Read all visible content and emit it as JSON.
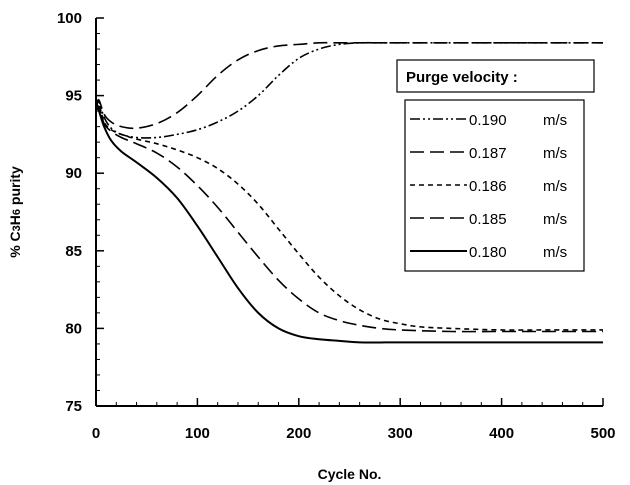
{
  "chart_data": {
    "type": "line",
    "title": "",
    "xlabel": "Cycle No.",
    "ylabel_prefix": "% C",
    "ylabel_sub1": "3",
    "ylabel_mid": "H",
    "ylabel_sub2": "6",
    "ylabel_suffix": " purity",
    "xlim": [
      0,
      500
    ],
    "ylim": [
      75,
      100
    ],
    "x_ticks": [
      "0",
      "100",
      "200",
      "300",
      "400",
      "500"
    ],
    "y_ticks": [
      "75",
      "80",
      "85",
      "90",
      "95",
      "100"
    ],
    "grid": false,
    "legend_title": "Purge velocity :",
    "legend_position": "right",
    "series": [
      {
        "name": "0.190",
        "unit": "m/s",
        "dash": "dash-dot-dot",
        "x": [
          0,
          3,
          8,
          15,
          25,
          40,
          60,
          80,
          100,
          120,
          140,
          160,
          180,
          200,
          220,
          240,
          260,
          280,
          300,
          350,
          400,
          450,
          500
        ],
        "y": [
          94.2,
          94.6,
          93.6,
          92.9,
          92.5,
          92.3,
          92.3,
          92.5,
          92.8,
          93.3,
          94.0,
          95.0,
          96.3,
          97.4,
          98.0,
          98.3,
          98.4,
          98.4,
          98.4,
          98.4,
          98.4,
          98.4,
          98.4
        ]
      },
      {
        "name": "0.187",
        "unit": "m/s",
        "dash": "long-dash",
        "x": [
          0,
          3,
          8,
          15,
          25,
          40,
          60,
          80,
          100,
          120,
          140,
          160,
          180,
          200,
          220,
          240,
          260,
          280,
          300,
          350,
          400,
          450,
          500
        ],
        "y": [
          94.5,
          94.7,
          93.8,
          93.3,
          93.0,
          92.9,
          93.2,
          93.9,
          95.0,
          96.3,
          97.3,
          97.9,
          98.2,
          98.3,
          98.4,
          98.4,
          98.4,
          98.4,
          98.4,
          98.4,
          98.4,
          98.4,
          98.4
        ]
      },
      {
        "name": "0.186",
        "unit": "m/s",
        "dash": "short-dash",
        "x": [
          0,
          3,
          8,
          15,
          25,
          40,
          60,
          80,
          100,
          120,
          140,
          160,
          180,
          200,
          220,
          240,
          260,
          280,
          300,
          320,
          350,
          400,
          450,
          500
        ],
        "y": [
          94.0,
          94.4,
          93.3,
          92.8,
          92.5,
          92.2,
          91.9,
          91.5,
          91.0,
          90.3,
          89.3,
          88.0,
          86.4,
          84.8,
          83.3,
          82.1,
          81.2,
          80.6,
          80.3,
          80.1,
          80.0,
          79.9,
          79.9,
          79.9
        ]
      },
      {
        "name": "0.185",
        "unit": "m/s",
        "dash": "long-dash",
        "x": [
          0,
          3,
          8,
          15,
          25,
          40,
          60,
          80,
          100,
          120,
          140,
          160,
          180,
          200,
          220,
          240,
          260,
          280,
          300,
          350,
          400,
          450,
          500
        ],
        "y": [
          94.0,
          94.3,
          93.2,
          92.7,
          92.3,
          91.9,
          91.3,
          90.4,
          89.2,
          87.8,
          86.2,
          84.6,
          83.1,
          81.9,
          81.0,
          80.5,
          80.2,
          80.0,
          79.9,
          79.8,
          79.8,
          79.8,
          79.8
        ]
      },
      {
        "name": "0.180",
        "unit": "m/s",
        "dash": "solid",
        "x": [
          0,
          3,
          8,
          15,
          25,
          40,
          60,
          80,
          100,
          120,
          140,
          160,
          180,
          200,
          220,
          240,
          260,
          300,
          350,
          400,
          450,
          500
        ],
        "y": [
          94.6,
          94.0,
          93.0,
          92.1,
          91.4,
          90.7,
          89.7,
          88.4,
          86.6,
          84.6,
          82.6,
          81.0,
          80.0,
          79.5,
          79.3,
          79.2,
          79.1,
          79.1,
          79.1,
          79.1,
          79.1,
          79.1
        ]
      }
    ]
  }
}
